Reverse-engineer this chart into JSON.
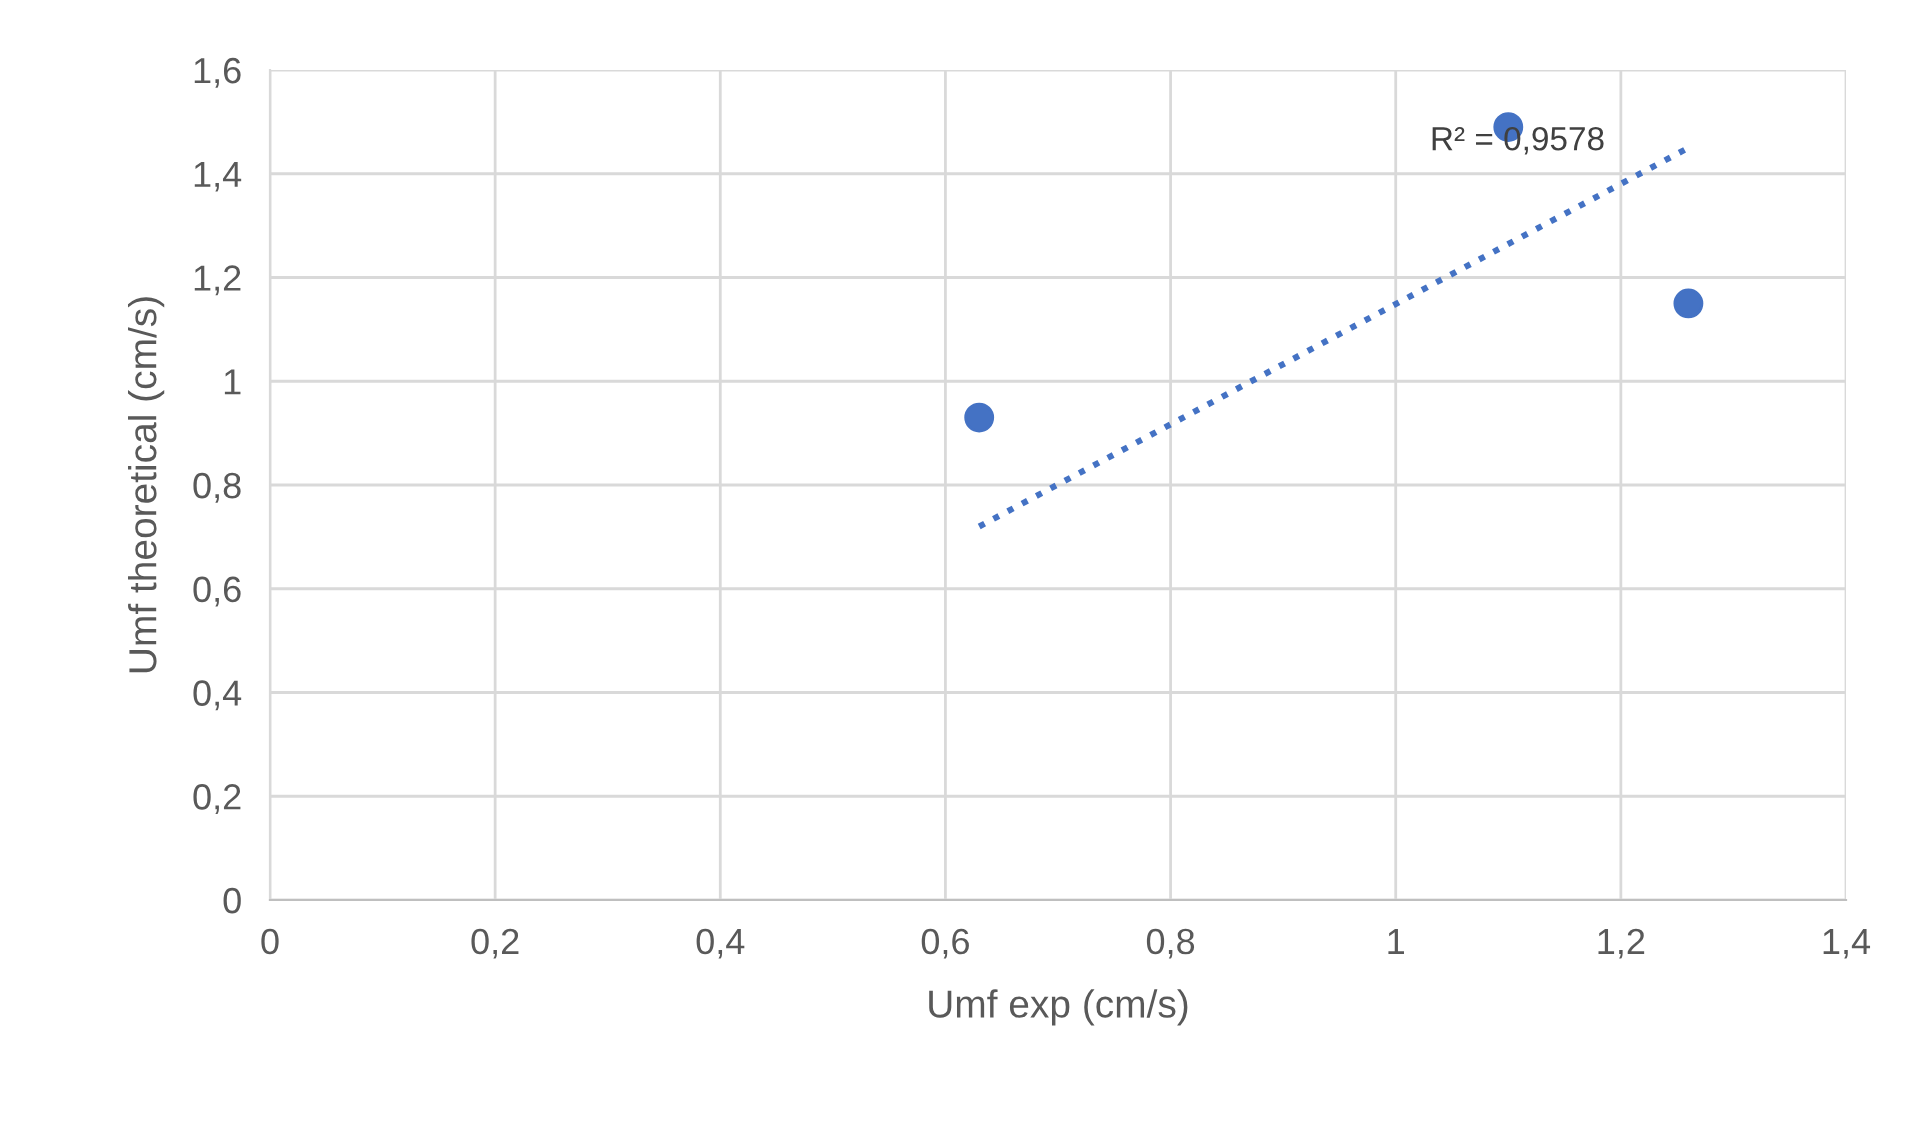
{
  "chart_data": {
    "type": "scatter",
    "xlabel": "Umf exp (cm/s)",
    "ylabel": "Umf theoretical (cm/s)",
    "series": [
      {
        "color": "#4472c4",
        "x": [
          0.63,
          1.1,
          1.26
        ],
        "values": [
          0.93,
          1.49,
          1.15
        ],
        "marker": "circle"
      },
      {
        "type": "line",
        "color": "#4472c4",
        "x": [
          0.63,
          1.26
        ],
        "values": [
          0.72,
          1.45
        ],
        "line_style": "dotted",
        "marker": "none"
      }
    ],
    "xlim": [
      0,
      1.4
    ],
    "ylim": [
      0,
      1.6
    ],
    "xticks": [
      0,
      {
        "value": 0.2,
        "label": "0,2"
      },
      {
        "value": 0.4,
        "label": "0,4"
      },
      {
        "value": 0.6,
        "label": "0,6"
      },
      {
        "value": 0.8,
        "label": "0,8"
      },
      1,
      {
        "value": 1.2,
        "label": "1,2"
      },
      {
        "value": 1.4,
        "label": "1,4"
      }
    ],
    "yticks": [
      0,
      {
        "value": 0.2,
        "label": "0,2"
      },
      {
        "value": 0.4,
        "label": "0,4"
      },
      {
        "value": 0.6,
        "label": "0,6"
      },
      {
        "value": 0.8,
        "label": "0,8"
      },
      1,
      {
        "value": 1.2,
        "label": "1,2"
      },
      {
        "value": 1.4,
        "label": "1,4"
      },
      {
        "value": 1.6,
        "label": "1,6"
      }
    ],
    "grid": true,
    "annotations": [
      "R² = 0,9578"
    ]
  }
}
